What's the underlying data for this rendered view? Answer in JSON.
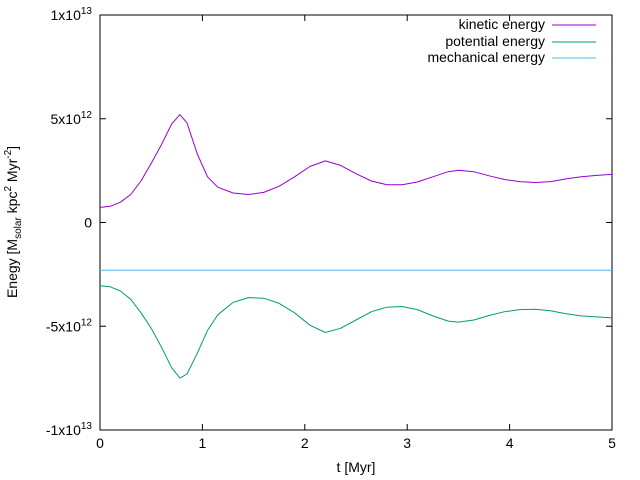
{
  "chart_data": {
    "type": "line",
    "xlabel": "t [Myr]",
    "ylabel": {
      "prefix": "Enegy [M",
      "sub": "solar",
      "mid1": " kpc",
      "sup1": "2",
      "mid2": " Myr",
      "sup2": "-2",
      "suffix": "]"
    },
    "xlim": [
      0,
      5
    ],
    "ylim": [
      -10000000000000.0,
      10000000000000.0
    ],
    "xticks": [
      {
        "value": 0,
        "label": "0"
      },
      {
        "value": 1,
        "label": "1"
      },
      {
        "value": 2,
        "label": "2"
      },
      {
        "value": 3,
        "label": "3"
      },
      {
        "value": 4,
        "label": "4"
      },
      {
        "value": 5,
        "label": "5"
      }
    ],
    "yticks": [
      {
        "value": 10000000000000.0,
        "mant": "1x10",
        "exp": "13"
      },
      {
        "value": 5000000000000.0,
        "mant": "5x10",
        "exp": "12"
      },
      {
        "value": 0,
        "mant": "0",
        "exp": ""
      },
      {
        "value": -5000000000000.0,
        "mant": "-5x10",
        "exp": "12"
      },
      {
        "value": -10000000000000.0,
        "mant": "-1x10",
        "exp": "13"
      }
    ],
    "legend_position": "top-right",
    "grid": false,
    "series": [
      {
        "name": "kinetic energy",
        "color": "#9400d3",
        "points": [
          [
            0,
            730000000000.0
          ],
          [
            0.1,
            780000000000.0
          ],
          [
            0.2,
            980000000000.0
          ],
          [
            0.3,
            1350000000000.0
          ],
          [
            0.4,
            2000000000000.0
          ],
          [
            0.5,
            2850000000000.0
          ],
          [
            0.6,
            3750000000000.0
          ],
          [
            0.7,
            4750000000000.0
          ],
          [
            0.78,
            5200000000000.0
          ],
          [
            0.85,
            4800000000000.0
          ],
          [
            0.95,
            3300000000000.0
          ],
          [
            1.05,
            2200000000000.0
          ],
          [
            1.15,
            1700000000000.0
          ],
          [
            1.3,
            1420000000000.0
          ],
          [
            1.45,
            1350000000000.0
          ],
          [
            1.6,
            1450000000000.0
          ],
          [
            1.75,
            1750000000000.0
          ],
          [
            1.9,
            2200000000000.0
          ],
          [
            2.05,
            2700000000000.0
          ],
          [
            2.2,
            2970000000000.0
          ],
          [
            2.35,
            2750000000000.0
          ],
          [
            2.5,
            2350000000000.0
          ],
          [
            2.65,
            2000000000000.0
          ],
          [
            2.8,
            1820000000000.0
          ],
          [
            2.95,
            1820000000000.0
          ],
          [
            3.1,
            1950000000000.0
          ],
          [
            3.25,
            2200000000000.0
          ],
          [
            3.4,
            2450000000000.0
          ],
          [
            3.5,
            2520000000000.0
          ],
          [
            3.65,
            2450000000000.0
          ],
          [
            3.8,
            2250000000000.0
          ],
          [
            3.95,
            2070000000000.0
          ],
          [
            4.1,
            1970000000000.0
          ],
          [
            4.25,
            1930000000000.0
          ],
          [
            4.4,
            1970000000000.0
          ],
          [
            4.55,
            2100000000000.0
          ],
          [
            4.7,
            2200000000000.0
          ],
          [
            4.85,
            2270000000000.0
          ],
          [
            5.0,
            2320000000000.0
          ]
        ]
      },
      {
        "name": "potential energy",
        "color": "#009e73",
        "points": [
          [
            0,
            -3050000000000.0
          ],
          [
            0.1,
            -3100000000000.0
          ],
          [
            0.2,
            -3300000000000.0
          ],
          [
            0.3,
            -3700000000000.0
          ],
          [
            0.4,
            -4350000000000.0
          ],
          [
            0.5,
            -5100000000000.0
          ],
          [
            0.6,
            -6000000000000.0
          ],
          [
            0.7,
            -7000000000000.0
          ],
          [
            0.78,
            -7500000000000.0
          ],
          [
            0.85,
            -7300000000000.0
          ],
          [
            0.95,
            -6300000000000.0
          ],
          [
            1.05,
            -5200000000000.0
          ],
          [
            1.15,
            -4450000000000.0
          ],
          [
            1.3,
            -3850000000000.0
          ],
          [
            1.45,
            -3620000000000.0
          ],
          [
            1.6,
            -3650000000000.0
          ],
          [
            1.75,
            -3900000000000.0
          ],
          [
            1.9,
            -4350000000000.0
          ],
          [
            2.05,
            -4950000000000.0
          ],
          [
            2.2,
            -5300000000000.0
          ],
          [
            2.35,
            -5100000000000.0
          ],
          [
            2.5,
            -4700000000000.0
          ],
          [
            2.65,
            -4300000000000.0
          ],
          [
            2.8,
            -4080000000000.0
          ],
          [
            2.95,
            -4050000000000.0
          ],
          [
            3.1,
            -4200000000000.0
          ],
          [
            3.25,
            -4500000000000.0
          ],
          [
            3.4,
            -4750000000000.0
          ],
          [
            3.5,
            -4800000000000.0
          ],
          [
            3.65,
            -4700000000000.0
          ],
          [
            3.8,
            -4480000000000.0
          ],
          [
            3.95,
            -4300000000000.0
          ],
          [
            4.1,
            -4200000000000.0
          ],
          [
            4.25,
            -4180000000000.0
          ],
          [
            4.4,
            -4250000000000.0
          ],
          [
            4.55,
            -4400000000000.0
          ],
          [
            4.7,
            -4500000000000.0
          ],
          [
            4.85,
            -4550000000000.0
          ],
          [
            5.0,
            -4600000000000.0
          ]
        ]
      },
      {
        "name": "mechanical energy",
        "color": "#56b4e9",
        "points": [
          [
            0,
            -2300000000000.0
          ],
          [
            5.0,
            -2300000000000.0
          ]
        ]
      }
    ]
  }
}
